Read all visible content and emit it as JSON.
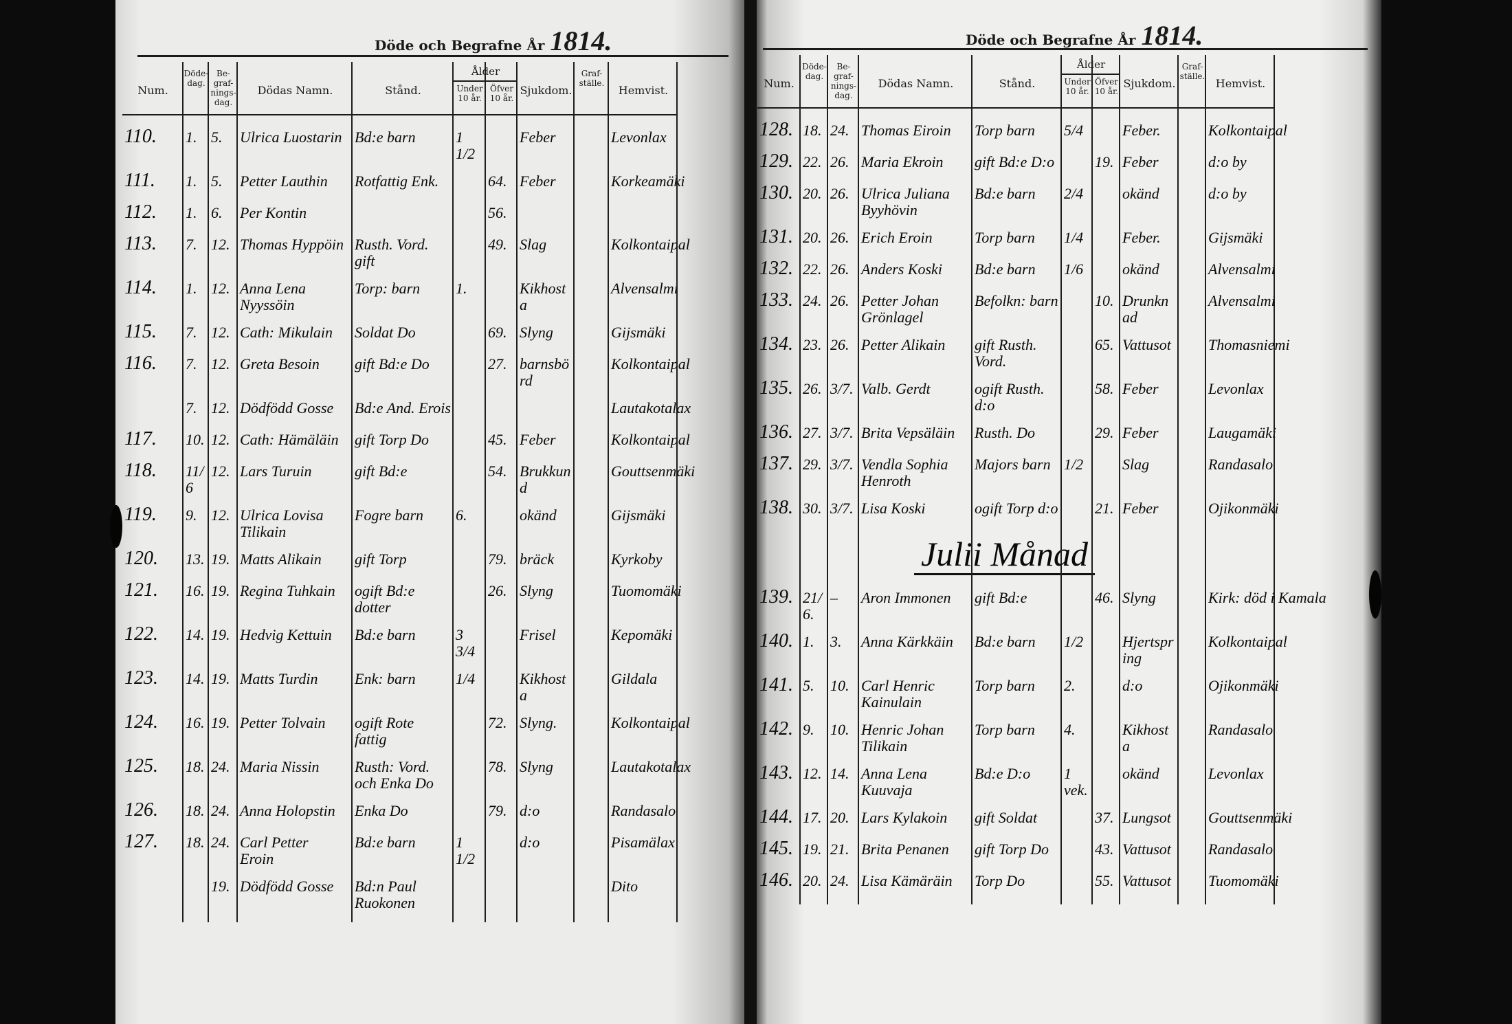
{
  "header": {
    "title": "Döde och Begrafne År",
    "left_year": "1814.",
    "right_year": "1814."
  },
  "columns": {
    "num": "Num.",
    "death_day": "Döde-\ndag.",
    "burial_day": "Be-\ngraf-\nnings-\ndag.",
    "name": "Dödas Namn.",
    "status": "Stånd.",
    "age": "Ålder",
    "age_under": "Under\n10 år.",
    "age_over": "Öfver\n10 år.",
    "disease": "Sjukdom.",
    "grave": "Graf-\nställe.",
    "residence": "Hemvist."
  },
  "left_page": {
    "rows": [
      {
        "num": "110.",
        "death_day": "1.",
        "burial_day": "5.",
        "name": "Ulrica Luostarin",
        "status": "Bd:e barn",
        "under10": "1 1/2",
        "over10": "",
        "disease": "Feber",
        "residence": "Levonlax"
      },
      {
        "num": "111.",
        "death_day": "1.",
        "burial_day": "5.",
        "name": "Petter Lauthin",
        "status": "Rotfattig Enk.",
        "under10": "",
        "over10": "64.",
        "disease": "Feber",
        "residence": "Korkeamäki"
      },
      {
        "num": "112.",
        "death_day": "1.",
        "burial_day": "6.",
        "name": "Per Kontin",
        "status": "",
        "under10": "",
        "over10": "56.",
        "disease": "",
        "residence": ""
      },
      {
        "num": "113.",
        "death_day": "7.",
        "burial_day": "12.",
        "name": "Thomas Hyppöin",
        "status": "Rusth. Vord.\ngift",
        "under10": "",
        "over10": "49.",
        "disease": "Slag",
        "residence": "Kolkontaipal"
      },
      {
        "num": "114.",
        "death_day": "1.",
        "burial_day": "12.",
        "name": "Anna Lena\nNyyssöin",
        "status": "Torp: barn",
        "under10": "1.",
        "over10": "",
        "disease": "Kikhosta",
        "residence": "Alvensalmi"
      },
      {
        "num": "115.",
        "death_day": "7.",
        "burial_day": "12.",
        "name": "Cath: Mikulain",
        "status": "Soldat Do",
        "under10": "",
        "over10": "69.",
        "disease": "Slyng",
        "residence": "Gijsmäki"
      },
      {
        "num": "116.",
        "death_day": "7.",
        "burial_day": "12.",
        "name": "Greta Besoin",
        "status": "gift Bd:e Do",
        "under10": "",
        "over10": "27.",
        "disease": "barnsbörd",
        "residence": "Kolkontaipal"
      },
      {
        "num": "",
        "death_day": "7.",
        "burial_day": "12.",
        "name": "Dödfödd Gosse",
        "status": "Bd:e And. Erois",
        "under10": "",
        "over10": "",
        "disease": "",
        "residence": "Lautakotalax"
      },
      {
        "num": "117.",
        "death_day": "10.",
        "burial_day": "12.",
        "name": "Cath: Hämäläin",
        "status": "gift Torp Do",
        "under10": "",
        "over10": "45.",
        "disease": "Feber",
        "residence": "Kolkontaipal"
      },
      {
        "num": "118.",
        "death_day": "11/6",
        "burial_day": "12.",
        "name": "Lars Turuin",
        "status": "gift Bd:e",
        "under10": "",
        "over10": "54.",
        "disease": "Brukkund",
        "residence": "Gouttsenmäki"
      },
      {
        "num": "119.",
        "death_day": "9.",
        "burial_day": "12.",
        "name": "Ulrica Lovisa\nTilikain",
        "status": "Fogre barn",
        "under10": "6.",
        "over10": "",
        "disease": "okänd",
        "residence": "Gijsmäki"
      },
      {
        "num": "120.",
        "death_day": "13.",
        "burial_day": "19.",
        "name": "Matts Alikain",
        "status": "gift Torp",
        "under10": "",
        "over10": "79.",
        "disease": "bräck",
        "residence": "Kyrkoby"
      },
      {
        "num": "121.",
        "death_day": "16.",
        "burial_day": "19.",
        "name": "Regina Tuhkain",
        "status": "ogift Bd:e\ndotter",
        "under10": "",
        "over10": "26.",
        "disease": "Slyng",
        "residence": "Tuomomäki"
      },
      {
        "num": "122.",
        "death_day": "14.",
        "burial_day": "19.",
        "name": "Hedvig Kettuin",
        "status": "Bd:e barn",
        "under10": "3 3/4",
        "over10": "",
        "disease": "Frisel",
        "residence": "Kepomäki"
      },
      {
        "num": "123.",
        "death_day": "14.",
        "burial_day": "19.",
        "name": "Matts Turdin",
        "status": "Enk: barn",
        "under10": "1/4",
        "over10": "",
        "disease": "Kikhosta",
        "residence": "Gildala"
      },
      {
        "num": "124.",
        "death_day": "16.",
        "burial_day": "19.",
        "name": "Petter Tolvain",
        "status": "ogift Rote\nfattig",
        "under10": "",
        "over10": "72.",
        "disease": "Slyng.",
        "residence": "Kolkontaipal"
      },
      {
        "num": "125.",
        "death_day": "18.",
        "burial_day": "24.",
        "name": "Maria Nissin",
        "status": "Rusth: Vord.\noch Enka Do",
        "under10": "",
        "over10": "78.",
        "disease": "Slyng",
        "residence": "Lautakotalax"
      },
      {
        "num": "126.",
        "death_day": "18.",
        "burial_day": "24.",
        "name": "Anna Holopstin",
        "status": "Enka Do",
        "under10": "",
        "over10": "79.",
        "disease": "d:o",
        "residence": "Randasalo"
      },
      {
        "num": "127.",
        "death_day": "18.",
        "burial_day": "24.",
        "name": "Carl Petter\nEroin",
        "status": "Bd:e barn",
        "under10": "1 1/2",
        "over10": "",
        "disease": "d:o",
        "residence": "Pisamälax"
      },
      {
        "num": "",
        "death_day": "",
        "burial_day": "19.",
        "name": "Dödfödd Gosse",
        "status": "Bd:n Paul\nRuokonen",
        "under10": "",
        "over10": "",
        "disease": "",
        "residence": "Dito"
      }
    ]
  },
  "right_page": {
    "rows": [
      {
        "num": "128.",
        "death_day": "18.",
        "burial_day": "24.",
        "name": "Thomas Eiroin",
        "status": "Torp barn",
        "under10": "5/4",
        "over10": "",
        "disease": "Feber.",
        "residence": "Kolkontaipal"
      },
      {
        "num": "129.",
        "death_day": "22.",
        "burial_day": "26.",
        "name": "Maria Ekroin",
        "status": "gift Bd:e D:o",
        "under10": "",
        "over10": "19.",
        "disease": "Feber",
        "residence": "d:o by"
      },
      {
        "num": "130.",
        "death_day": "20.",
        "burial_day": "26.",
        "name": "Ulrica Juliana\nByyhövin",
        "status": "Bd:e barn",
        "under10": "2/4",
        "over10": "",
        "disease": "okänd",
        "residence": "d:o by"
      },
      {
        "num": "131.",
        "death_day": "20.",
        "burial_day": "26.",
        "name": "Erich Eroin",
        "status": "Torp barn",
        "under10": "1/4",
        "over10": "",
        "disease": "Feber.",
        "residence": "Gijsmäki"
      },
      {
        "num": "132.",
        "death_day": "22.",
        "burial_day": "26.",
        "name": "Anders Koski",
        "status": "Bd:e barn",
        "under10": "1/6",
        "over10": "",
        "disease": "okänd",
        "residence": "Alvensalmi"
      },
      {
        "num": "133.",
        "death_day": "24.",
        "burial_day": "26.",
        "name": "Petter Johan\nGrönlagel",
        "status": "Befolkn: barn",
        "under10": "",
        "over10": "10.",
        "disease": "Drunknad",
        "residence": "Alvensalmi"
      },
      {
        "num": "134.",
        "death_day": "23.",
        "burial_day": "26.",
        "name": "Petter Alikain",
        "status": "gift Rusth.\nVord.",
        "under10": "",
        "over10": "65.",
        "disease": "Vattusot",
        "residence": "Thomasniemi"
      },
      {
        "num": "135.",
        "death_day": "26.",
        "burial_day": "3/7.",
        "name": "Valb. Gerdt",
        "status": "ogift Rusth. d:o",
        "under10": "",
        "over10": "58.",
        "disease": "Feber",
        "residence": "Levonlax"
      },
      {
        "num": "136.",
        "death_day": "27.",
        "burial_day": "3/7.",
        "name": "Brita Vepsäläin",
        "status": "Rusth. Do",
        "under10": "",
        "over10": "29.",
        "disease": "Feber",
        "residence": "Laugamäki"
      },
      {
        "num": "137.",
        "death_day": "29.",
        "burial_day": "3/7.",
        "name": "Vendla Sophia\nHenroth",
        "status": "Majors barn",
        "under10": "1/2",
        "over10": "",
        "disease": "Slag",
        "residence": "Randasalo"
      },
      {
        "num": "138.",
        "death_day": "30.",
        "burial_day": "3/7.",
        "name": "Lisa Koski",
        "status": "ogift Torp d:o",
        "under10": "",
        "over10": "21.",
        "disease": "Feber",
        "residence": "Ojikonmäki"
      },
      {
        "num": "139.",
        "death_day": "21/6.",
        "burial_day": "–",
        "name": "Aron Immonen",
        "status": "gift Bd:e",
        "under10": "",
        "over10": "46.",
        "disease": "Slyng",
        "residence": "Kirk: död i Kamala"
      },
      {
        "num": "140.",
        "death_day": "1.",
        "burial_day": "3.",
        "name": "Anna Kärkkäin",
        "status": "Bd:e barn",
        "under10": "1/2",
        "over10": "",
        "disease": "Hjertspring",
        "residence": "Kolkontaipal"
      },
      {
        "num": "141.",
        "death_day": "5.",
        "burial_day": "10.",
        "name": "Carl Henric\nKainulain",
        "status": "Torp barn",
        "under10": "2.",
        "over10": "",
        "disease": "d:o",
        "residence": "Ojikonmäki"
      },
      {
        "num": "142.",
        "death_day": "9.",
        "burial_day": "10.",
        "name": "Henric Johan\nTilikain",
        "status": "Torp barn",
        "under10": "4.",
        "over10": "",
        "disease": "Kikhosta",
        "residence": "Randasalo"
      },
      {
        "num": "143.",
        "death_day": "12.",
        "burial_day": "14.",
        "name": "Anna Lena\nKuuvaja",
        "status": "Bd:e D:o",
        "under10": "1 vek.",
        "over10": "",
        "disease": "okänd",
        "residence": "Levonlax"
      },
      {
        "num": "144.",
        "death_day": "17.",
        "burial_day": "20.",
        "name": "Lars Kylakoin",
        "status": "gift Soldat",
        "under10": "",
        "over10": "37.",
        "disease": "Lungsot",
        "residence": "Gouttsenmäki"
      },
      {
        "num": "145.",
        "death_day": "19.",
        "burial_day": "21.",
        "name": "Brita Penanen",
        "status": "gift Torp Do",
        "under10": "",
        "over10": "43.",
        "disease": "Vattusot",
        "residence": "Randasalo"
      },
      {
        "num": "146.",
        "death_day": "20.",
        "burial_day": "24.",
        "name": "Lisa Kämäräin",
        "status": "Torp Do",
        "under10": "",
        "over10": "55.",
        "disease": "Vattusot",
        "residence": "Tuomomäki"
      }
    ],
    "month_heading": "Julii Månad"
  }
}
